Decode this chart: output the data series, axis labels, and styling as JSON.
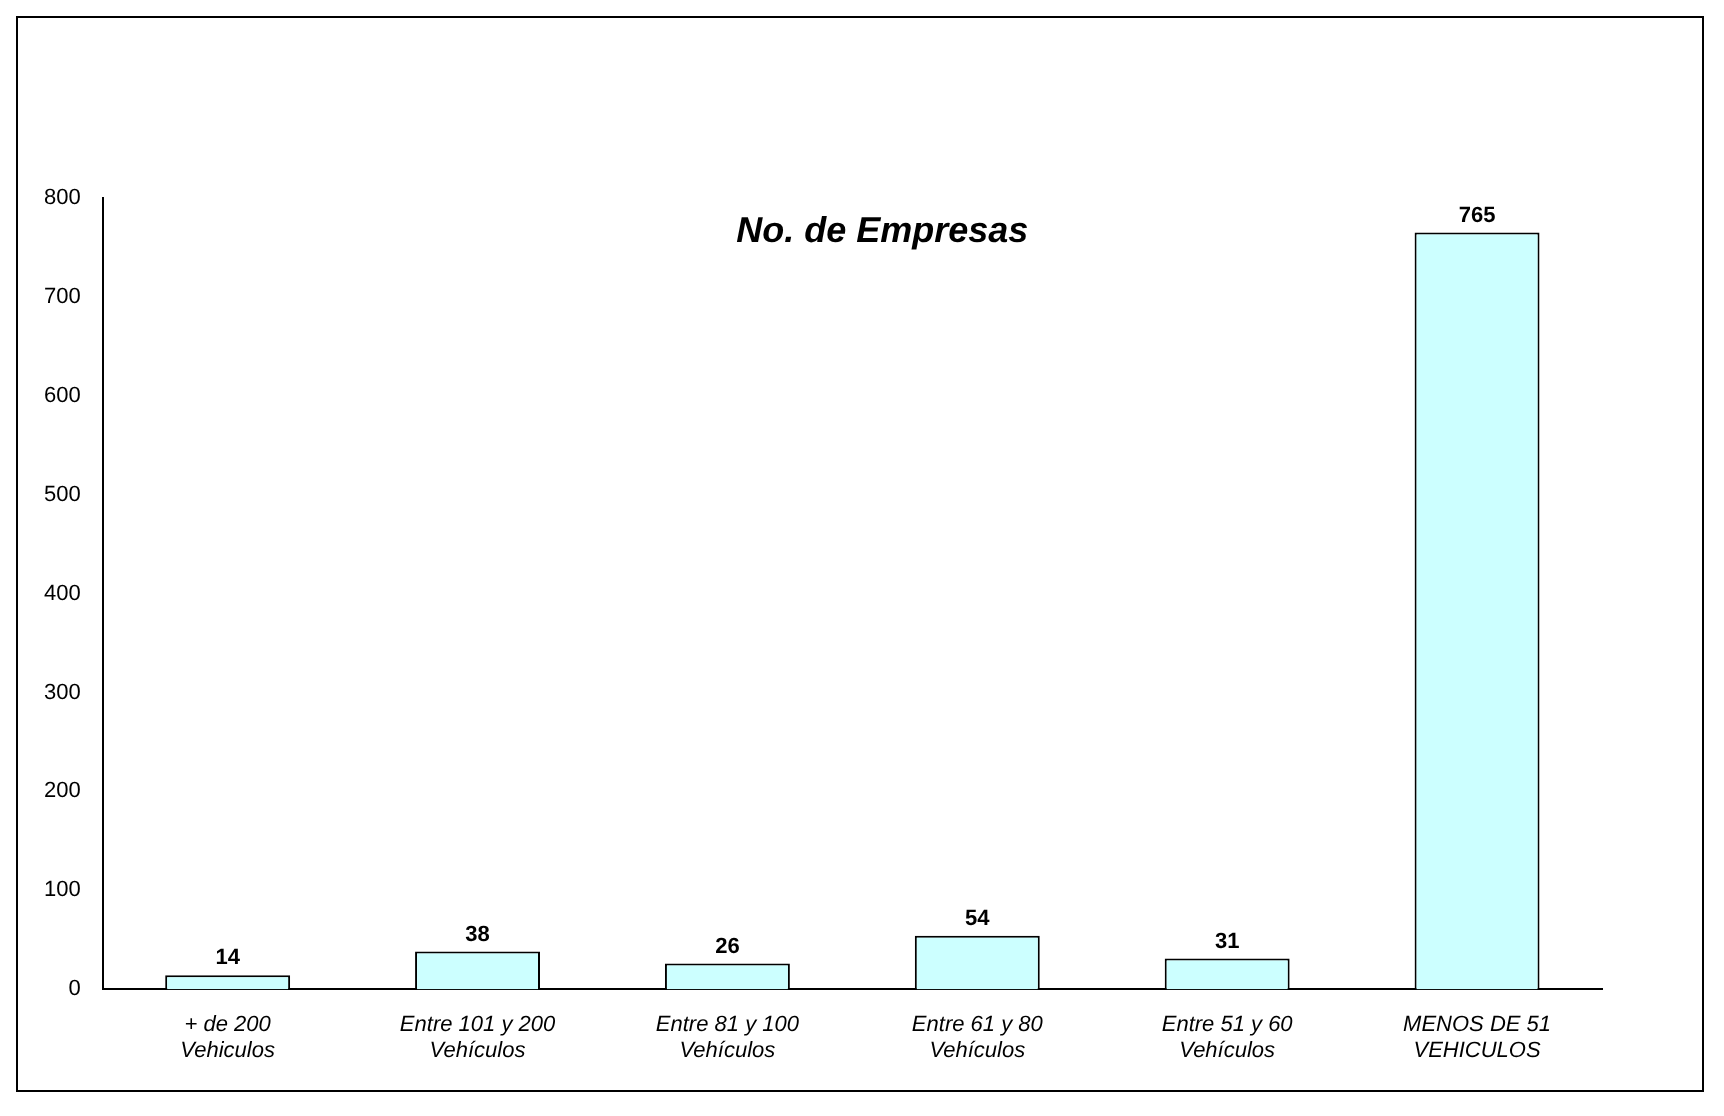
{
  "chart_data": {
    "type": "bar",
    "title": "No. de Empresas",
    "categories": [
      "+ de 200 Vehiculos",
      "Entre 101 y 200 Vehículos",
      "Entre 81 y 100 Vehículos",
      "Entre 61 y 80 Vehículos",
      "Entre 51 y 60 Vehículos",
      "MENOS DE 51 VEHICULOS"
    ],
    "values": [
      14,
      38,
      26,
      54,
      31,
      765
    ],
    "color": "#ccffff",
    "ylim": [
      0,
      800
    ],
    "yticks": [
      0,
      100,
      200,
      300,
      400,
      500,
      600,
      700,
      800
    ],
    "grid": false,
    "legend": false,
    "data_labels": true
  }
}
